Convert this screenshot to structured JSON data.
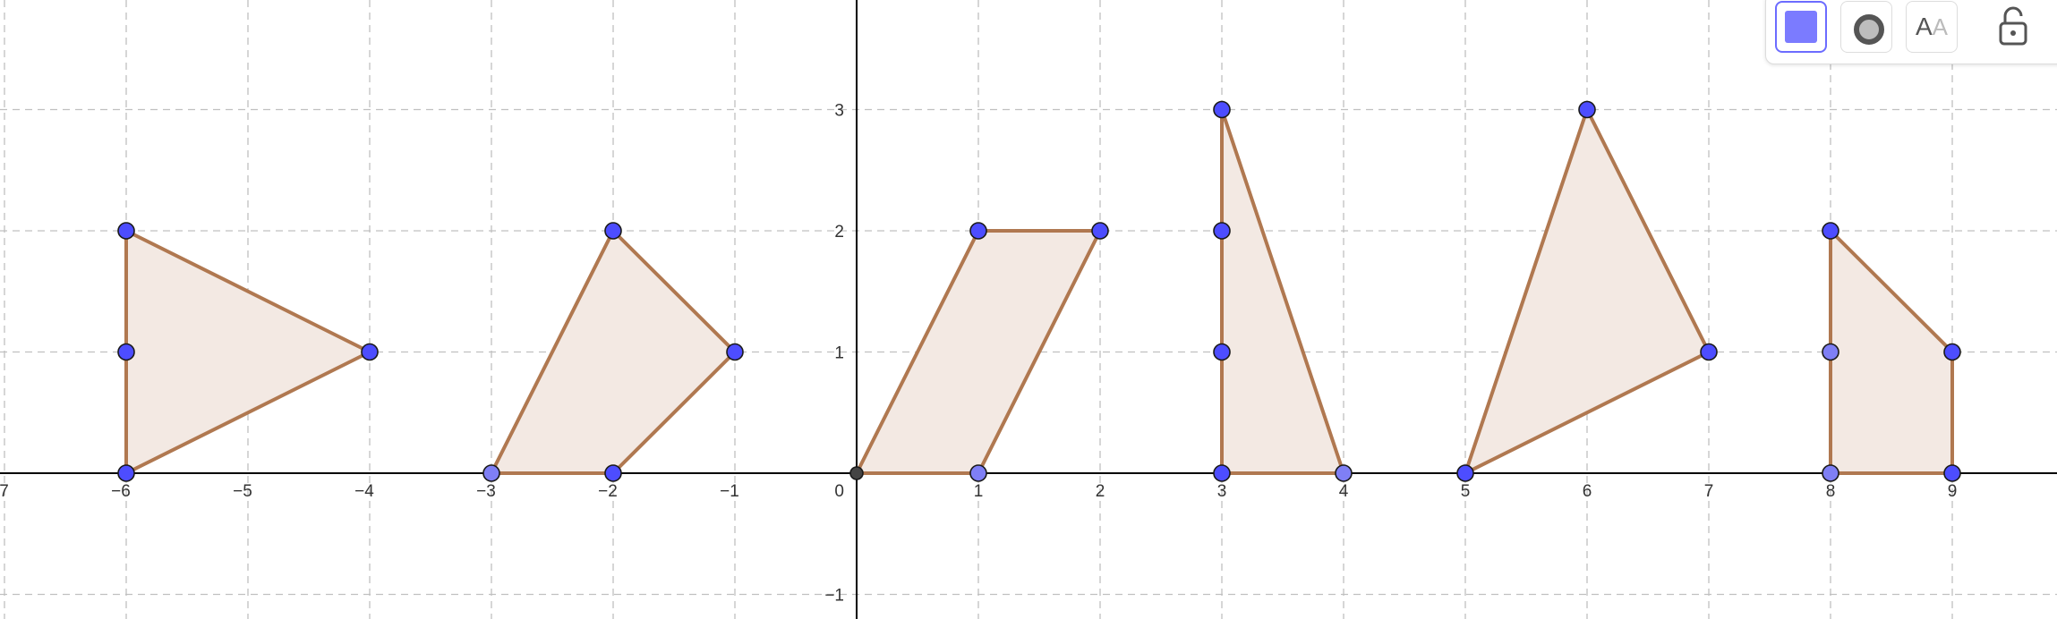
{
  "chart_data": {
    "type": "diagram",
    "x_range": [
      -7,
      9.9
    ],
    "y_range": [
      -1.2,
      3.9
    ],
    "grid": true,
    "x_ticks": [
      -7,
      -6,
      -5,
      -4,
      -3,
      -2,
      -1,
      1,
      2,
      3,
      4,
      5,
      6,
      7,
      8,
      9
    ],
    "y_ticks": [
      -1,
      1,
      2,
      3
    ],
    "origin_label": "0",
    "shapes": [
      {
        "name": "triangle-1",
        "vertices": [
          [
            -6,
            0
          ],
          [
            -4,
            1
          ],
          [
            -6,
            2
          ]
        ]
      },
      {
        "name": "quadrilateral-2",
        "vertices": [
          [
            -3,
            0
          ],
          [
            -2,
            0
          ],
          [
            -1,
            1
          ],
          [
            -2,
            2
          ]
        ]
      },
      {
        "name": "parallelogram-3",
        "vertices": [
          [
            0,
            0
          ],
          [
            1,
            0
          ],
          [
            2,
            2
          ],
          [
            1,
            2
          ]
        ]
      },
      {
        "name": "triangle-4",
        "vertices": [
          [
            3,
            0
          ],
          [
            4,
            0
          ],
          [
            3,
            3
          ]
        ]
      },
      {
        "name": "triangle-5",
        "vertices": [
          [
            5,
            0
          ],
          [
            7,
            1
          ],
          [
            6,
            3
          ]
        ]
      },
      {
        "name": "quadrilateral-6",
        "vertices": [
          [
            8,
            0
          ],
          [
            9,
            0
          ],
          [
            9,
            1
          ],
          [
            8,
            2
          ]
        ]
      }
    ],
    "points": [
      {
        "x": -6,
        "y": 0,
        "style": "free"
      },
      {
        "x": -6,
        "y": 1,
        "style": "free"
      },
      {
        "x": -6,
        "y": 2,
        "style": "free"
      },
      {
        "x": -4,
        "y": 1,
        "style": "free"
      },
      {
        "x": -3,
        "y": 0,
        "style": "dependent"
      },
      {
        "x": -2,
        "y": 0,
        "style": "free"
      },
      {
        "x": -1,
        "y": 1,
        "style": "free"
      },
      {
        "x": -2,
        "y": 2,
        "style": "free"
      },
      {
        "x": 0,
        "y": 0,
        "style": "origin"
      },
      {
        "x": 1,
        "y": 0,
        "style": "dependent"
      },
      {
        "x": 2,
        "y": 2,
        "style": "free"
      },
      {
        "x": 1,
        "y": 2,
        "style": "free"
      },
      {
        "x": 3,
        "y": 0,
        "style": "free"
      },
      {
        "x": 4,
        "y": 0,
        "style": "dependent"
      },
      {
        "x": 3,
        "y": 1,
        "style": "free"
      },
      {
        "x": 3,
        "y": 2,
        "style": "free"
      },
      {
        "x": 3,
        "y": 3,
        "style": "free"
      },
      {
        "x": 5,
        "y": 0,
        "style": "free"
      },
      {
        "x": 7,
        "y": 1,
        "style": "free"
      },
      {
        "x": 6,
        "y": 3,
        "style": "free"
      },
      {
        "x": 8,
        "y": 0,
        "style": "dependent"
      },
      {
        "x": 9,
        "y": 0,
        "style": "free"
      },
      {
        "x": 9,
        "y": 1,
        "style": "free"
      },
      {
        "x": 8,
        "y": 1,
        "style": "dependent"
      },
      {
        "x": 8,
        "y": 2,
        "style": "free"
      }
    ]
  },
  "colors": {
    "polygon_stroke": "#b07850",
    "polygon_fill": "#f3e9e3",
    "point_free": "#4d4dff",
    "point_dependent": "#7f7ff5",
    "point_origin": "#444444",
    "grid": "#c0c0c0",
    "axis": "#000000"
  },
  "toolbar": {
    "color_swatch": "#7b7bff",
    "buttons": [
      {
        "name": "color-button",
        "icon": "color-swatch-icon"
      },
      {
        "name": "point-style-button",
        "icon": "point-style-icon"
      },
      {
        "name": "label-style-button",
        "icon": "label-aa-icon"
      },
      {
        "name": "lock-button",
        "icon": "unlock-icon"
      }
    ],
    "label_text_dark": "A",
    "label_text_light": "A"
  }
}
